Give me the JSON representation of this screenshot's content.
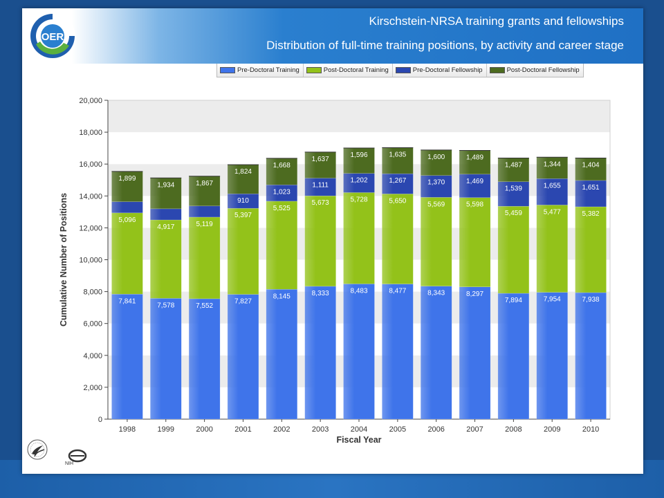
{
  "header": {
    "title_line1": "Kirschstein-NRSA training grants and fellowships",
    "title_line2": "Distribution of full-time training positions, by activity and career stage",
    "logo_text": "OER"
  },
  "footer": {
    "nih_text": "NIH"
  },
  "colors": {
    "pre_doctoral_training": "#3f74ea",
    "post_doctoral_training": "#93c21a",
    "pre_doctoral_fellowship": "#2b47b0",
    "post_doctoral_fellowship": "#4d6b20"
  },
  "chart_data": {
    "type": "bar",
    "stacked": true,
    "title": "",
    "xlabel": "Fiscal Year",
    "ylabel": "Cumulative Number of Positions",
    "ylim": [
      0,
      20000
    ],
    "yticks": [
      "0",
      "2,000",
      "4,000",
      "6,000",
      "8,000",
      "10,000",
      "12,000",
      "14,000",
      "16,000",
      "18,000",
      "20,000"
    ],
    "ytick_values": [
      0,
      2000,
      4000,
      6000,
      8000,
      10000,
      12000,
      14000,
      16000,
      18000,
      20000
    ],
    "legend_position": "top",
    "grid": false,
    "categories": [
      "1998",
      "1999",
      "2000",
      "2001",
      "2002",
      "2003",
      "2004",
      "2005",
      "2006",
      "2007",
      "2008",
      "2009",
      "2010"
    ],
    "series": [
      {
        "name": "Pre-Doctoral Training",
        "color": "#3f74ea",
        "values": [
          7841,
          7578,
          7552,
          7827,
          8145,
          8333,
          8483,
          8477,
          8343,
          8297,
          7894,
          7954,
          7938
        ],
        "labels": [
          "7,841",
          "7,578",
          "7,552",
          "7,827",
          "8,145",
          "8,333",
          "8,483",
          "8,477",
          "8,343",
          "8,297",
          "7,894",
          "7,954",
          "7,938"
        ]
      },
      {
        "name": "Post-Doctoral Training",
        "color": "#93c21a",
        "values": [
          5096,
          4917,
          5119,
          5397,
          5525,
          5673,
          5728,
          5650,
          5569,
          5598,
          5459,
          5477,
          5382
        ],
        "labels": [
          "5,096",
          "4,917",
          "5,119",
          "5,397",
          "5,525",
          "5,673",
          "5,728",
          "5,650",
          "5,569",
          "5,598",
          "5,459",
          "5,477",
          "5,382"
        ]
      },
      {
        "name": "Pre-Doctoral Fellowship",
        "color": "#2b47b0",
        "values": [
          700,
          700,
          700,
          910,
          1023,
          1111,
          1202,
          1267,
          1370,
          1469,
          1539,
          1655,
          1651
        ],
        "labels": [
          "",
          "",
          "",
          "910",
          "1,023",
          "1,111",
          "1,202",
          "1,267",
          "1,370",
          "1,469",
          "1,539",
          "1,655",
          "1,651"
        ]
      },
      {
        "name": "Post-Doctoral Fellowship",
        "color": "#4d6b20",
        "values": [
          1899,
          1934,
          1867,
          1824,
          1668,
          1637,
          1596,
          1635,
          1600,
          1489,
          1487,
          1344,
          1404
        ],
        "labels": [
          "1,899",
          "1,934",
          "1,867",
          "1,824",
          "1,668",
          "1,637",
          "1,596",
          "1,635",
          "1,600",
          "1,489",
          "1,487",
          "1,344",
          "1,404"
        ]
      }
    ]
  }
}
